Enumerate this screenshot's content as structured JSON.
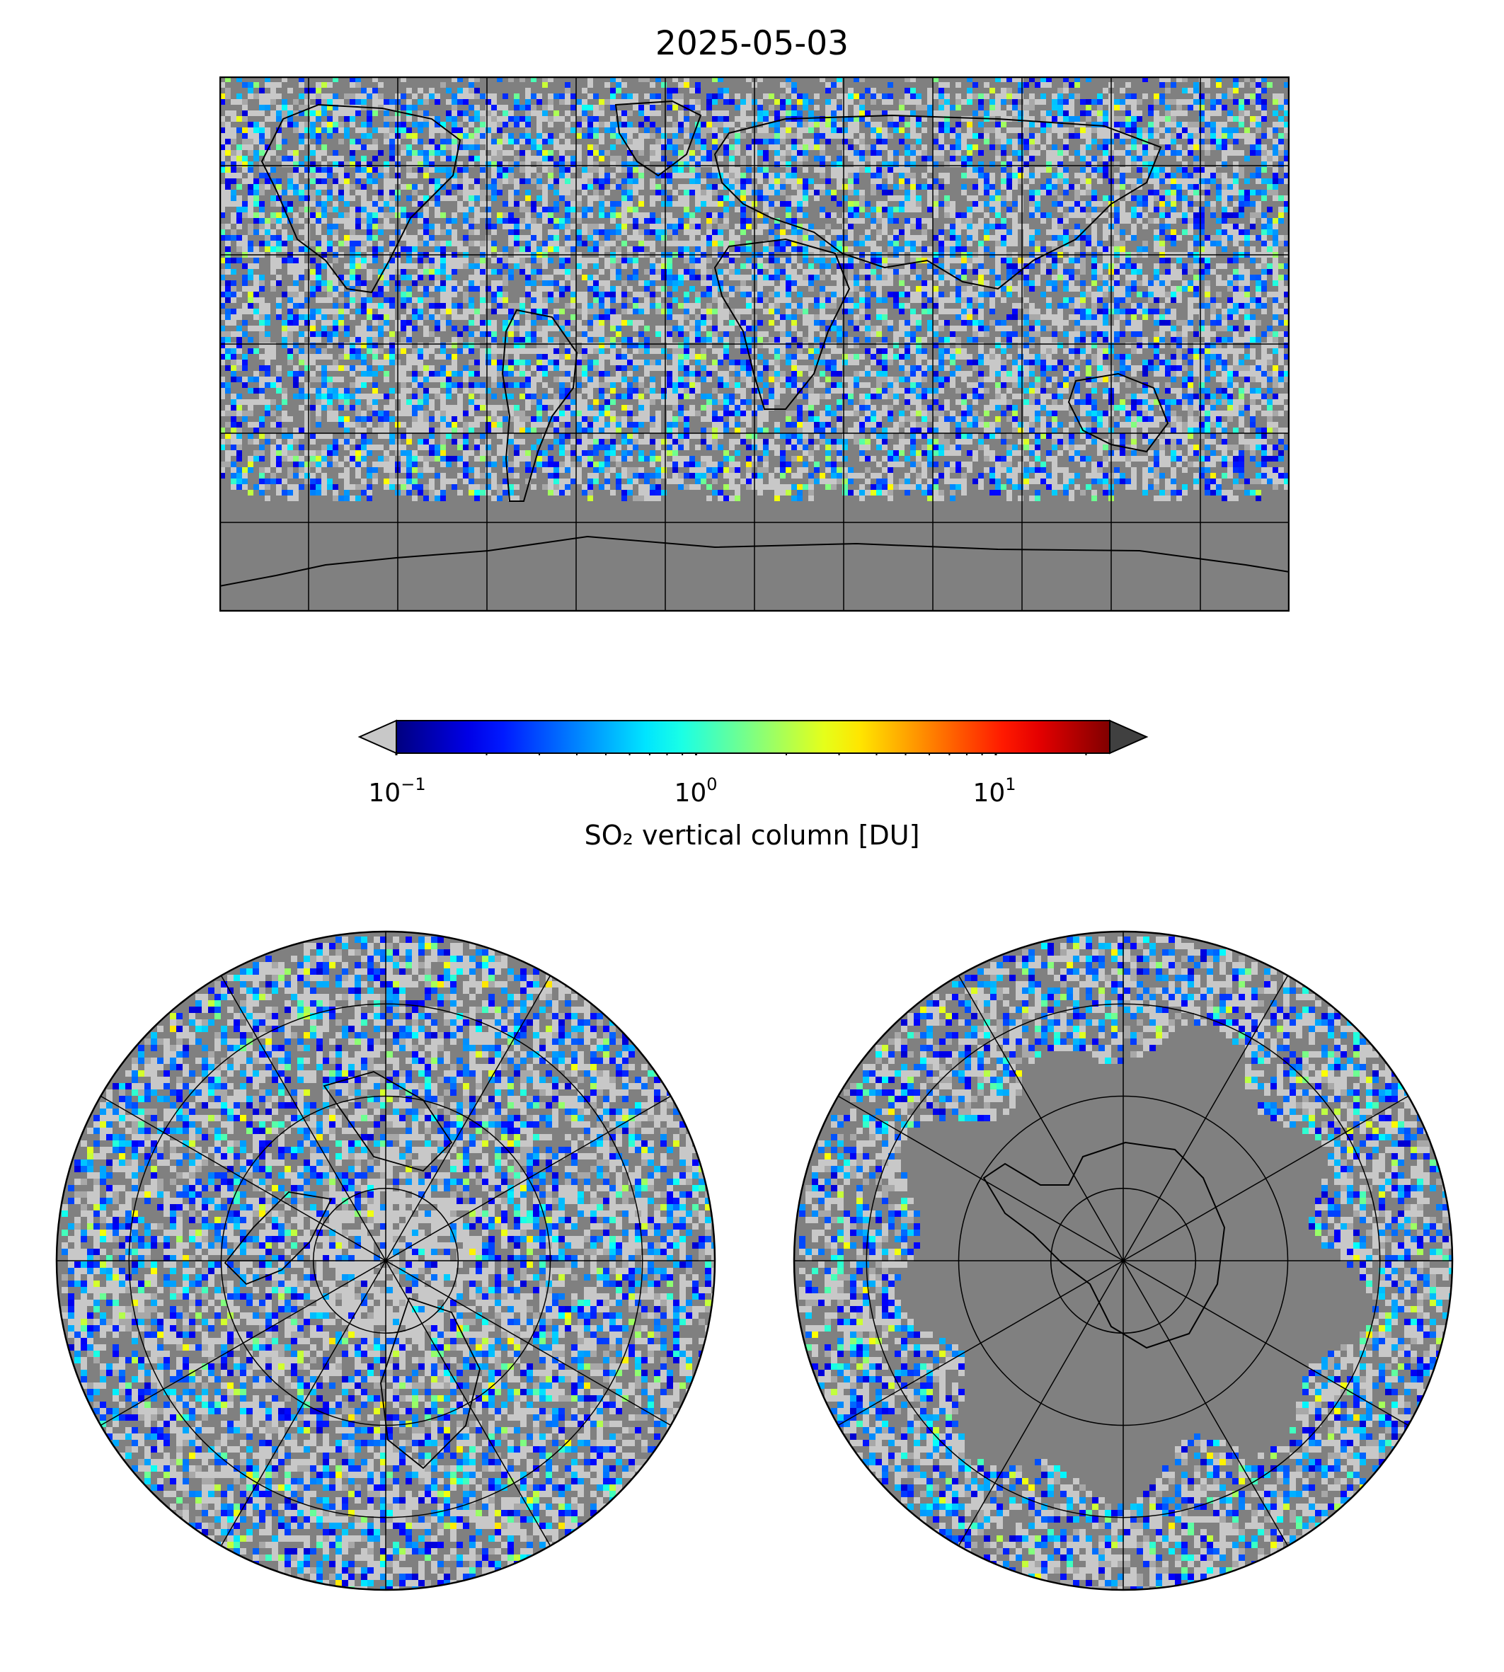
{
  "title": "2025-05-03",
  "colorbar": {
    "label": "SO₂ vertical column [DU]",
    "scale": "log",
    "range": [
      0.1,
      24
    ],
    "colormap": "jet",
    "under_color": "#c8c8c8",
    "over_color": "#404040",
    "ticks": [
      {
        "base": "10",
        "exp": "−1",
        "value": 0.1
      },
      {
        "base": "10",
        "exp": "0",
        "value": 1
      },
      {
        "base": "10",
        "exp": "1",
        "value": 10
      }
    ]
  },
  "maps": [
    {
      "projection": "plate-carree",
      "extent": [
        -180,
        180,
        -90,
        90
      ],
      "gridlines": "30 deg"
    },
    {
      "projection": "north-polar-stereographic",
      "gridlines": "30 deg meridians, 15 deg parallels"
    },
    {
      "projection": "south-polar-stereographic",
      "gridlines": "30 deg meridians, 15 deg parallels"
    }
  ],
  "colors": {
    "no_data": "#808080",
    "background_low": "#c8c8c8",
    "coastline": "#000000",
    "grid": "#000000"
  }
}
